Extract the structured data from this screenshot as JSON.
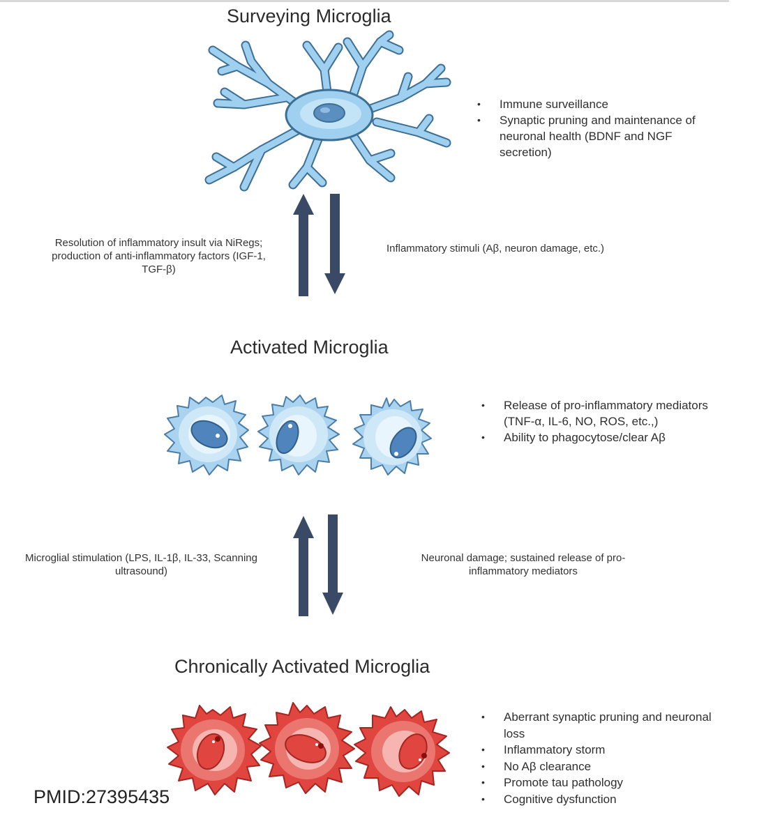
{
  "stages": {
    "surveying": {
      "title": "Surveying Microglia",
      "bullets": [
        "Immune surveillance",
        "Synaptic pruning and maintenance of neuronal health (BDNF and NGF secretion)"
      ]
    },
    "activated": {
      "title": "Activated Microglia",
      "bullets": [
        "Release of pro-inflammatory mediators (TNF-α, IL-6, NO, ROS, etc.,)",
        "Ability to phagocytose/clear Aβ"
      ]
    },
    "chronic": {
      "title": "Chronically Activated Microglia",
      "bullets": [
        "Aberrant synaptic pruning and neuronal loss",
        "Inflammatory storm",
        "No Aβ clearance",
        "Promote tau pathology",
        "Cognitive dysfunction"
      ]
    }
  },
  "transitions": {
    "upper_up": "Resolution of inflammatory insult via NiRegs; production of anti-inflammatory factors (IGF-1, TGF-β)",
    "upper_down": "Inflammatory stimuli (Aβ, neuron damage, etc.)",
    "lower_up": "Microglial stimulation (LPS, IL-1β, IL-33, Scanning ultrasound)",
    "lower_down": "Neuronal damage; sustained release of pro-inflammatory mediators"
  },
  "citation": "PMID:27395435",
  "colors": {
    "arrow": "#3a4a66",
    "surveying_cell": "#8ec4e6",
    "activated_cell": "#a9d3ef",
    "chronic_cell": "#e0463f"
  }
}
